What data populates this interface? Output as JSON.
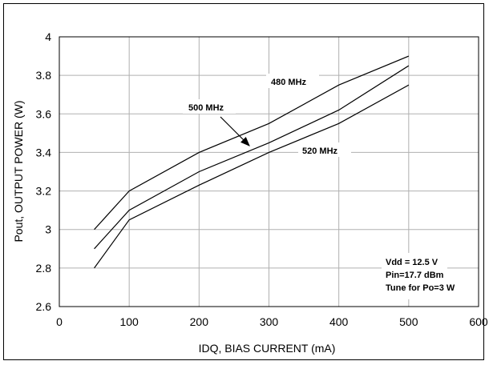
{
  "chart_data": {
    "type": "line",
    "xlabel": "IDQ, BIAS CURRENT (mA)",
    "ylabel": "Pout, OUTPUT POWER (W)",
    "xlim": [
      0,
      600
    ],
    "ylim": [
      2.6,
      4.0
    ],
    "x_ticks": [
      "0",
      "100",
      "200",
      "300",
      "400",
      "500",
      "600"
    ],
    "y_ticks": [
      "2.6",
      "2.8",
      "3",
      "3.2",
      "3.4",
      "3.6",
      "3.8",
      "4"
    ],
    "grid": true,
    "x": [
      50,
      100,
      200,
      300,
      400,
      500
    ],
    "series": [
      {
        "name": "480 MHz",
        "values": [
          3.0,
          3.2,
          3.4,
          3.55,
          3.75,
          3.9
        ]
      },
      {
        "name": "500 MHz",
        "values": [
          2.9,
          3.1,
          3.3,
          3.45,
          3.62,
          3.85
        ]
      },
      {
        "name": "520 MHz",
        "values": [
          2.8,
          3.05,
          3.23,
          3.4,
          3.55,
          3.75
        ]
      }
    ],
    "annotations": {
      "label_480": "480 MHz",
      "label_500": "500 MHz",
      "label_520": "520 MHz"
    },
    "conditions": [
      "Vdd = 12.5 V",
      "Pin=17.7 dBm",
      "Tune for Po=3 W"
    ]
  }
}
